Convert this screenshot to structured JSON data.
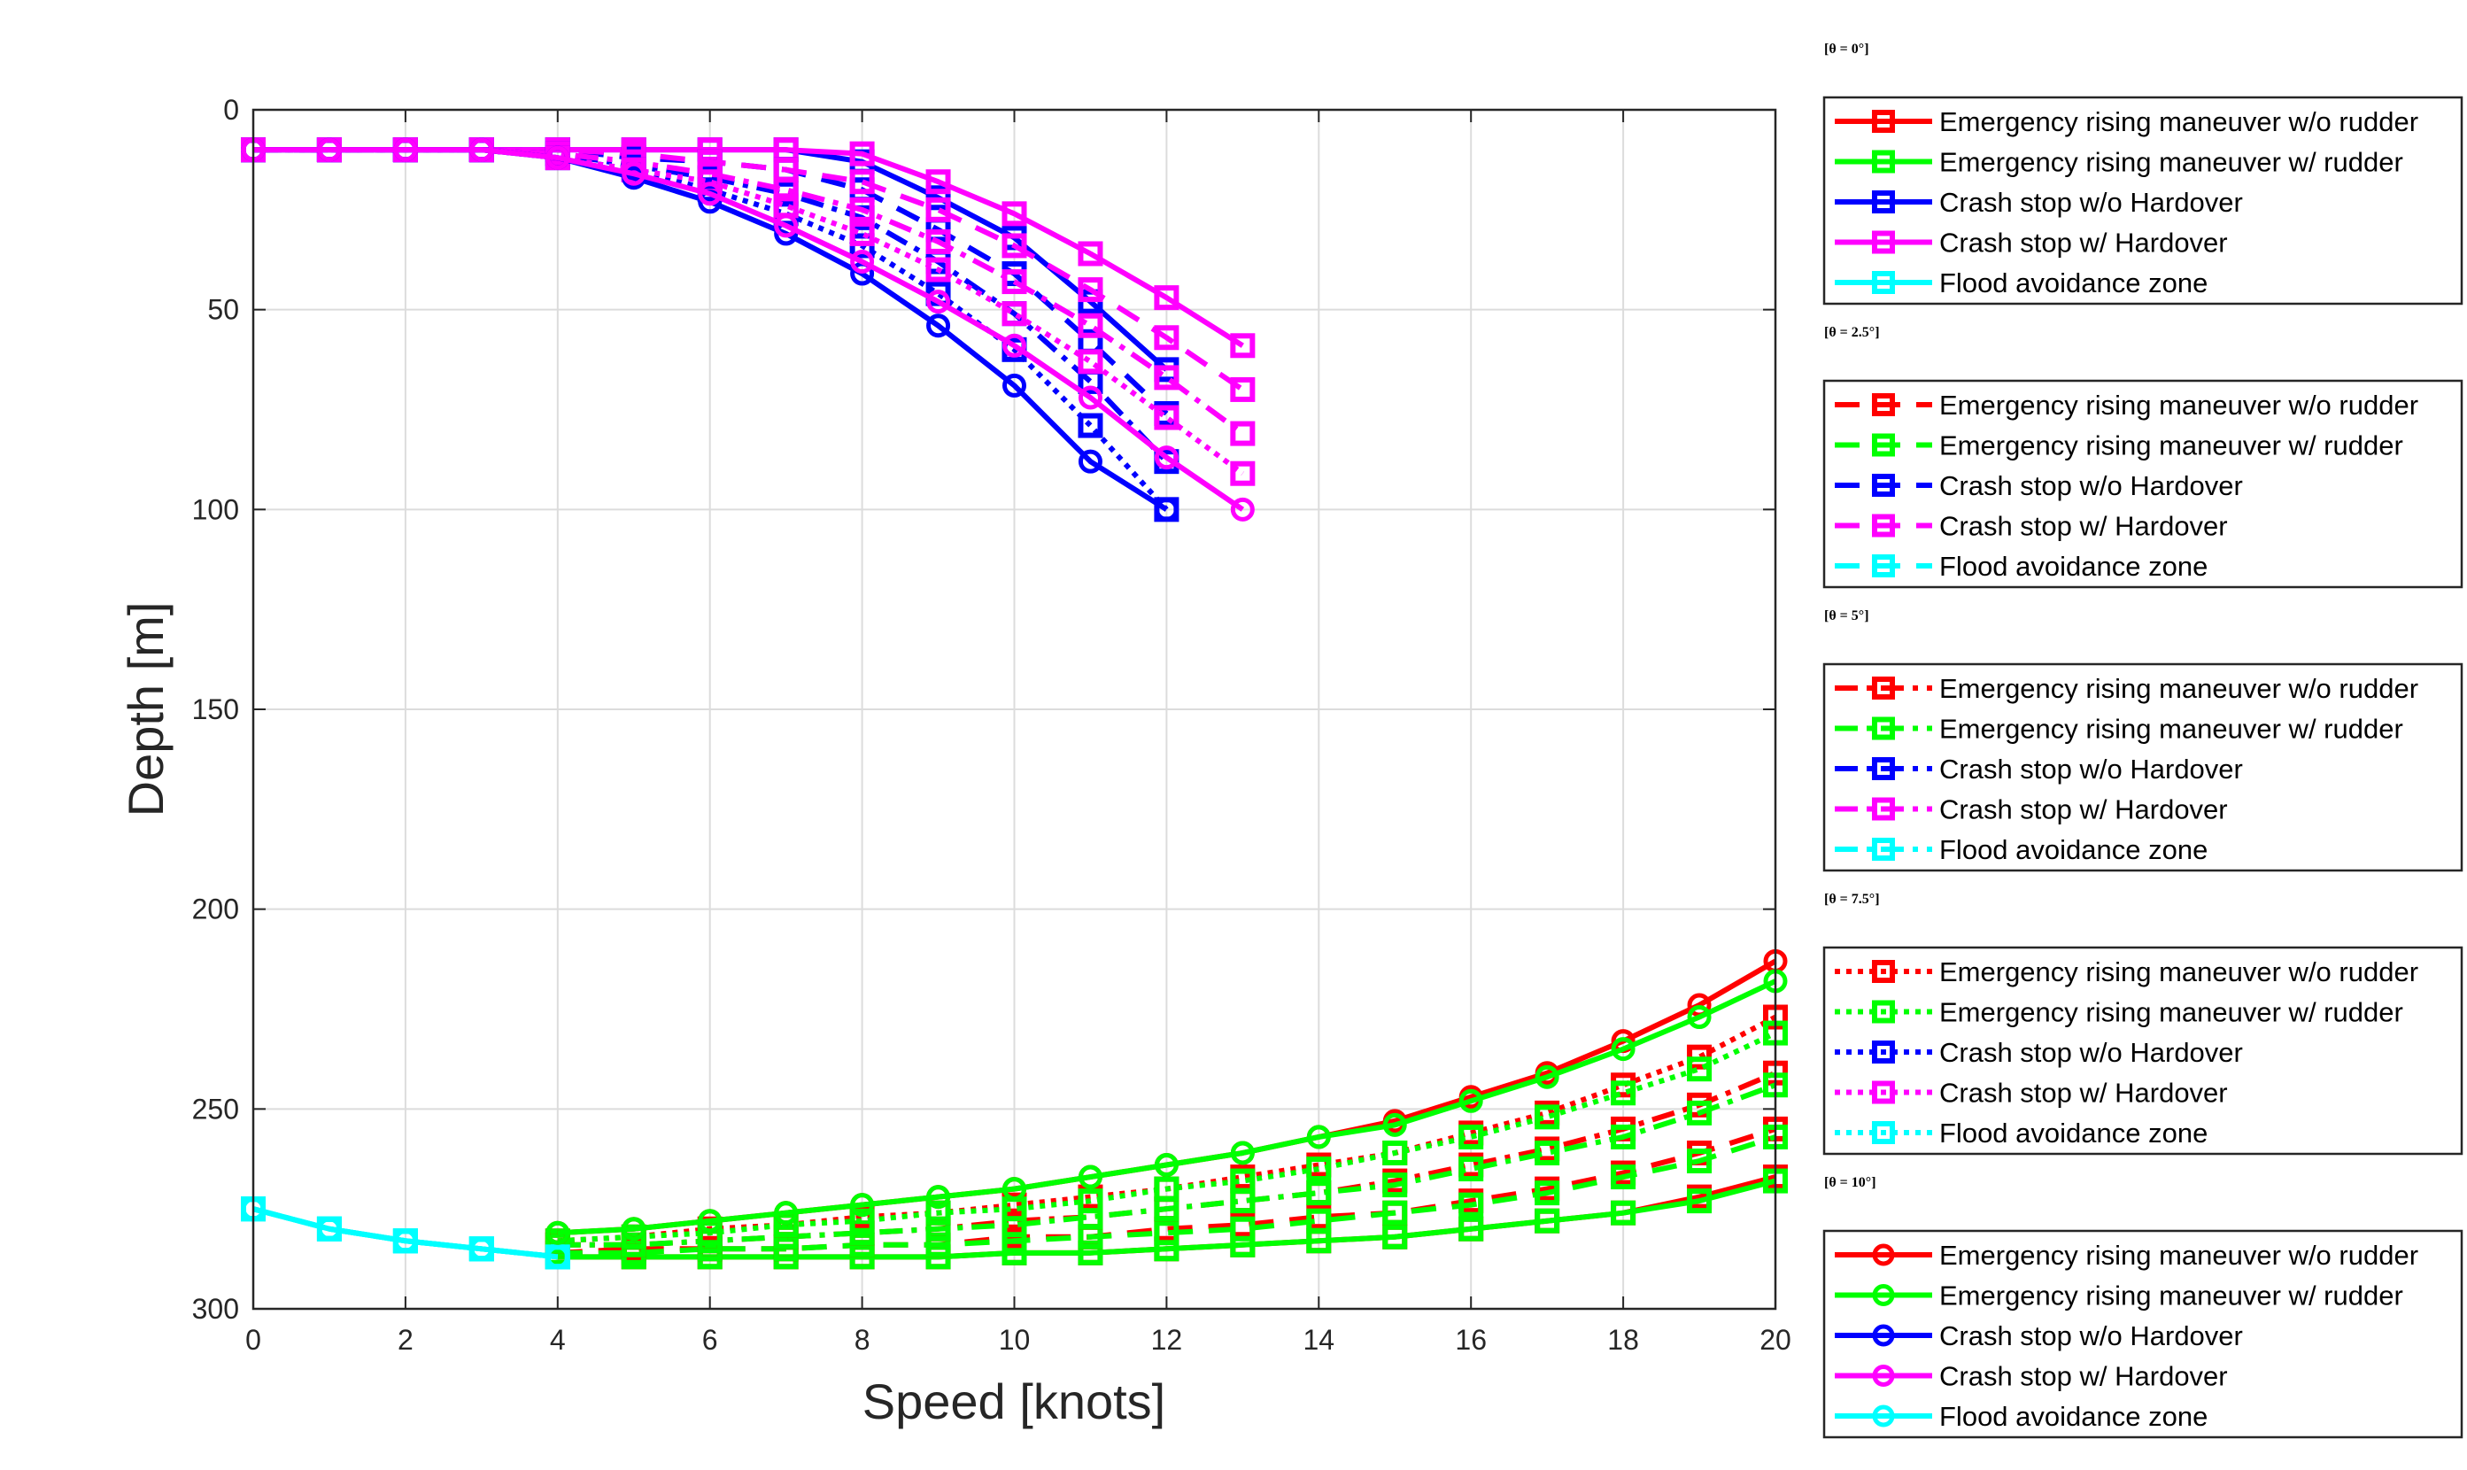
{
  "chart_data": {
    "type": "line",
    "xlabel": "Speed [knots]",
    "ylabel": "Depth [m]",
    "xlim": [
      0,
      20
    ],
    "ylim": [
      0,
      300
    ],
    "y_reversed": true,
    "xticks": [
      0,
      2,
      4,
      6,
      8,
      10,
      12,
      14,
      16,
      18,
      20
    ],
    "yticks": [
      0,
      50,
      100,
      150,
      200,
      250,
      300
    ],
    "grid": true,
    "legend_placement": "right, outside",
    "colors": {
      "Emergency rising maneuver w/o rudder": "#ff0000",
      "Emergency rising maneuver w/ rudder": "#00ff00",
      "Crash stop w/o Hardover": "#0000ff",
      "Crash stop w/ Hardover": "#ff00ff",
      "Flood avoidance zone": "#00ffff"
    },
    "series_names": [
      "Emergency rising maneuver w/o rudder",
      "Emergency rising maneuver w/ rudder",
      "Crash stop w/o Hardover",
      "Crash stop w/ Hardover",
      "Flood avoidance zone"
    ],
    "groups": [
      {
        "title": "[θ = 0°]",
        "line_style": "solid",
        "marker": "square",
        "series": [
          {
            "name": "Emergency rising maneuver w/o rudder",
            "x": [
              4,
              5,
              6,
              7,
              8,
              9,
              10,
              11,
              12,
              13,
              14,
              15,
              16,
              17,
              18,
              19,
              20
            ],
            "y": [
              287,
              287,
              287,
              287,
              287,
              287,
              286,
              286,
              285,
              284,
              283,
              282,
              280,
              278,
              276,
              272,
              267
            ]
          },
          {
            "name": "Emergency rising maneuver w/ rudder",
            "x": [
              4,
              5,
              6,
              7,
              8,
              9,
              10,
              11,
              12,
              13,
              14,
              15,
              16,
              17,
              18,
              19,
              20
            ],
            "y": [
              287,
              287,
              287,
              287,
              287,
              287,
              286,
              286,
              285,
              284,
              283,
              282,
              280,
              278,
              276,
              273,
              268
            ]
          },
          {
            "name": "Crash stop w/o Hardover",
            "x": [
              0,
              1,
              2,
              3,
              4,
              5,
              6,
              7,
              8,
              9,
              10,
              11,
              12
            ],
            "y": [
              10,
              10,
              10,
              10,
              10,
              10,
              10,
              10,
              13,
              22,
              32,
              48,
              65
            ]
          },
          {
            "name": "Crash stop w/ Hardover",
            "x": [
              0,
              1,
              2,
              3,
              4,
              5,
              6,
              7,
              8,
              9,
              10,
              11,
              12,
              13
            ],
            "y": [
              10,
              10,
              10,
              10,
              10,
              10,
              10,
              10,
              11,
              18,
              26,
              36,
              47,
              59
            ]
          },
          {
            "name": "Flood avoidance zone",
            "x": [
              0,
              1,
              2,
              3,
              4
            ],
            "y": [
              275,
              280,
              283,
              285,
              287
            ]
          }
        ]
      },
      {
        "title": "[θ = 2.5°]",
        "line_style": "dashed",
        "marker": "square",
        "series": [
          {
            "name": "Emergency rising maneuver w/o rudder",
            "x": [
              4,
              5,
              6,
              7,
              8,
              9,
              10,
              11,
              12,
              13,
              14,
              15,
              16,
              17,
              18,
              19,
              20
            ],
            "y": [
              286,
              285,
              285,
              285,
              284,
              284,
              282,
              282,
              280,
              279,
              277,
              276,
              273,
              270,
              266,
              261,
              255
            ]
          },
          {
            "name": "Emergency rising maneuver w/ rudder",
            "x": [
              4,
              5,
              6,
              7,
              8,
              9,
              10,
              11,
              12,
              13,
              14,
              15,
              16,
              17,
              18,
              19,
              20
            ],
            "y": [
              286,
              286,
              285,
              285,
              284,
              284,
              283,
              282,
              281,
              280,
              278,
              276,
              274,
              271,
              267,
              263,
              257
            ]
          },
          {
            "name": "Crash stop w/o Hardover",
            "x": [
              0,
              1,
              2,
              3,
              4,
              5,
              6,
              7,
              8,
              9,
              10,
              11,
              12
            ],
            "y": [
              10,
              10,
              10,
              10,
              10,
              12,
              13,
              15,
              20,
              30,
              41,
              58,
              76
            ]
          },
          {
            "name": "Crash stop w/ Hardover",
            "x": [
              0,
              1,
              2,
              3,
              4,
              5,
              6,
              7,
              8,
              9,
              10,
              11,
              12,
              13
            ],
            "y": [
              10,
              10,
              10,
              10,
              10,
              11,
              13,
              15,
              18,
              25,
              34,
              45,
              57,
              70
            ]
          },
          {
            "name": "Flood avoidance zone",
            "x": [
              0,
              1,
              2,
              3,
              4
            ],
            "y": [
              275,
              280,
              283,
              285,
              287
            ]
          }
        ]
      },
      {
        "title": "[θ = 5°]",
        "line_style": "dashdot",
        "marker": "square",
        "series": [
          {
            "name": "Emergency rising maneuver w/o rudder",
            "x": [
              4,
              5,
              6,
              7,
              8,
              9,
              10,
              11,
              12,
              13,
              14,
              15,
              16,
              17,
              18,
              19,
              20
            ],
            "y": [
              284,
              284,
              283,
              282,
              281,
              280,
              278,
              277,
              275,
              273,
              271,
              268,
              264,
              260,
              255,
              249,
              241
            ]
          },
          {
            "name": "Emergency rising maneuver w/ rudder",
            "x": [
              4,
              5,
              6,
              7,
              8,
              9,
              10,
              11,
              12,
              13,
              14,
              15,
              16,
              17,
              18,
              19,
              20
            ],
            "y": [
              284,
              284,
              283,
              282,
              281,
              280,
              279,
              277,
              275,
              273,
              271,
              269,
              265,
              261,
              257,
              251,
              244
            ]
          },
          {
            "name": "Crash stop w/o Hardover",
            "x": [
              0,
              1,
              2,
              3,
              4,
              5,
              6,
              7,
              8,
              9,
              10,
              11,
              12
            ],
            "y": [
              10,
              10,
              10,
              10,
              11,
              14,
              17,
              21,
              27,
              38,
              51,
              68,
              88
            ]
          },
          {
            "name": "Crash stop w/ Hardover",
            "x": [
              0,
              1,
              2,
              3,
              4,
              5,
              6,
              7,
              8,
              9,
              10,
              11,
              12,
              13
            ],
            "y": [
              10,
              10,
              10,
              10,
              11,
              13,
              16,
              20,
              25,
              33,
              43,
              54,
              67,
              81
            ]
          },
          {
            "name": "Flood avoidance zone",
            "x": [
              0,
              1,
              2,
              3,
              4
            ],
            "y": [
              275,
              280,
              283,
              285,
              287
            ]
          }
        ]
      },
      {
        "title": "[θ = 7.5°]",
        "line_style": "dotted",
        "marker": "square",
        "series": [
          {
            "name": "Emergency rising maneuver w/o rudder",
            "x": [
              4,
              5,
              6,
              7,
              8,
              9,
              10,
              11,
              12,
              13,
              14,
              15,
              16,
              17,
              18,
              19,
              20
            ],
            "y": [
              283,
              282,
              280,
              279,
              277,
              276,
              274,
              272,
              270,
              267,
              264,
              261,
              256,
              251,
              244,
              237,
              227
            ]
          },
          {
            "name": "Emergency rising maneuver w/ rudder",
            "x": [
              4,
              5,
              6,
              7,
              8,
              9,
              10,
              11,
              12,
              13,
              14,
              15,
              16,
              17,
              18,
              19,
              20
            ],
            "y": [
              283,
              282,
              281,
              279,
              278,
              276,
              275,
              273,
              270,
              268,
              265,
              261,
              257,
              252,
              246,
              240,
              231
            ]
          },
          {
            "name": "Crash stop w/o Hardover",
            "x": [
              0,
              1,
              2,
              3,
              4,
              5,
              6,
              7,
              8,
              9,
              10,
              11,
              12
            ],
            "y": [
              10,
              10,
              10,
              10,
              12,
              15,
              20,
              26,
              34,
              46,
              60,
              79,
              100
            ]
          },
          {
            "name": "Crash stop w/ Hardover",
            "x": [
              0,
              1,
              2,
              3,
              4,
              5,
              6,
              7,
              8,
              9,
              10,
              11,
              12,
              13
            ],
            "y": [
              10,
              10,
              10,
              10,
              12,
              15,
              18,
              24,
              31,
              40,
              51,
              63,
              77,
              91
            ]
          },
          {
            "name": "Flood avoidance zone",
            "x": [
              0,
              1,
              2,
              3,
              4
            ],
            "y": [
              275,
              280,
              283,
              285,
              287
            ]
          }
        ]
      },
      {
        "title": "[θ = 10°]",
        "line_style": "solid",
        "marker": "circle",
        "series": [
          {
            "name": "Emergency rising maneuver w/o rudder",
            "x": [
              4,
              5,
              6,
              7,
              8,
              9,
              10,
              11,
              12,
              13,
              14,
              15,
              16,
              17,
              18,
              19,
              20
            ],
            "y": [
              281,
              280,
              278,
              276,
              274,
              272,
              270,
              267,
              264,
              261,
              257,
              253,
              247,
              241,
              233,
              224,
              213
            ]
          },
          {
            "name": "Emergency rising maneuver w/ rudder",
            "x": [
              4,
              5,
              6,
              7,
              8,
              9,
              10,
              11,
              12,
              13,
              14,
              15,
              16,
              17,
              18,
              19,
              20
            ],
            "y": [
              281,
              280,
              278,
              276,
              274,
              272,
              270,
              267,
              264,
              261,
              257,
              254,
              248,
              242,
              235,
              227,
              218
            ]
          },
          {
            "name": "Crash stop w/o Hardover",
            "x": [
              0,
              1,
              2,
              3,
              4,
              5,
              6,
              7,
              8,
              9,
              10,
              11,
              12
            ],
            "y": [
              10,
              10,
              10,
              10,
              12,
              17,
              23,
              31,
              41,
              54,
              69,
              88,
              100
            ]
          },
          {
            "name": "Crash stop w/ Hardover",
            "x": [
              0,
              1,
              2,
              3,
              4,
              5,
              6,
              7,
              8,
              9,
              10,
              11,
              12,
              13
            ],
            "y": [
              10,
              10,
              10,
              10,
              12,
              16,
              21,
              29,
              38,
              48,
              59,
              72,
              87,
              100
            ]
          },
          {
            "name": "Flood avoidance zone",
            "x": [
              0,
              1,
              2,
              3,
              4
            ],
            "y": [
              275,
              280,
              283,
              285,
              287
            ]
          }
        ]
      }
    ]
  }
}
